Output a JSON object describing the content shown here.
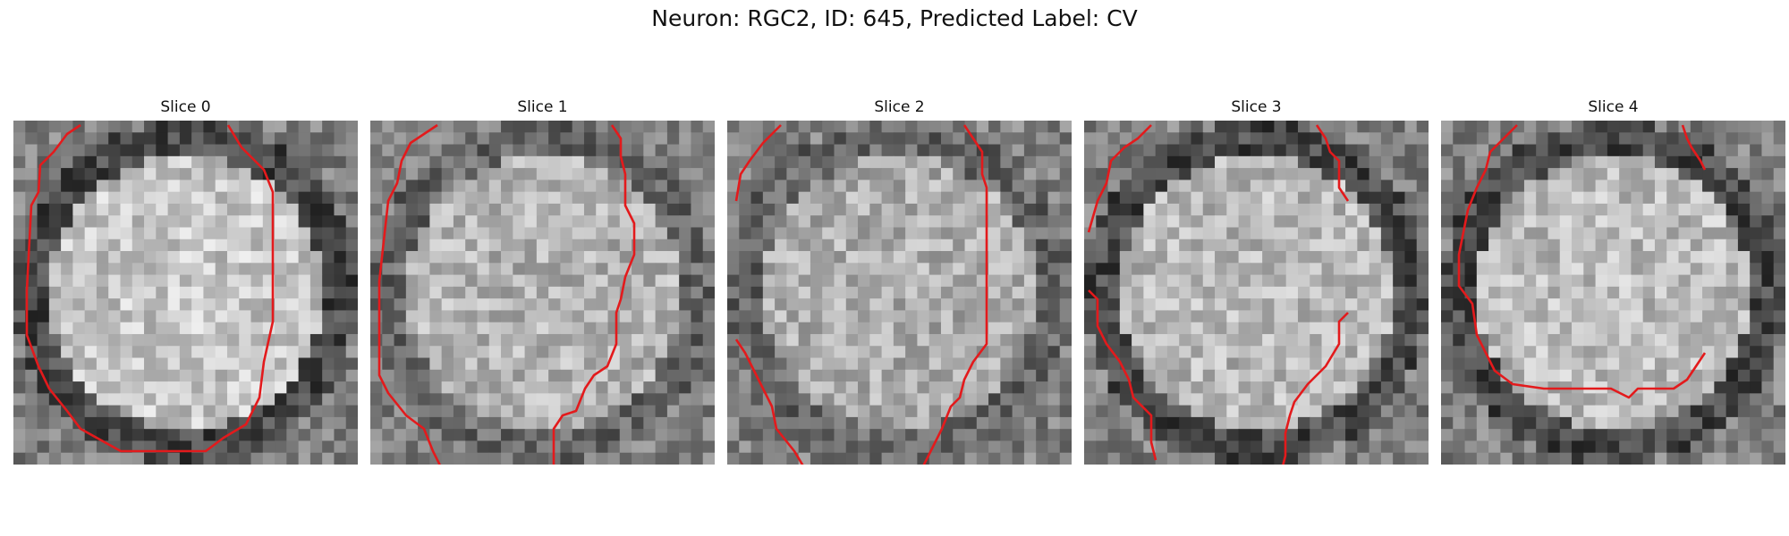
{
  "figure": {
    "title": "Neuron: RGC2, ID: 645, Predicted Label: CV",
    "panels": [
      {
        "title": "Slice 0",
        "contour_color": "#e31a1c",
        "center_brightness": 0.78,
        "rim_darkness": "strong"
      },
      {
        "title": "Slice 1",
        "contour_color": "#e31a1c",
        "center_brightness": 0.7,
        "rim_darkness": "moderate"
      },
      {
        "title": "Slice 2",
        "contour_color": "#e31a1c",
        "center_brightness": 0.68,
        "rim_darkness": "moderate"
      },
      {
        "title": "Slice 3",
        "contour_color": "#e31a1c",
        "center_brightness": 0.72,
        "rim_darkness": "strong"
      },
      {
        "title": "Slice 4",
        "contour_color": "#e31a1c",
        "center_brightness": 0.74,
        "rim_darkness": "strong"
      }
    ]
  }
}
